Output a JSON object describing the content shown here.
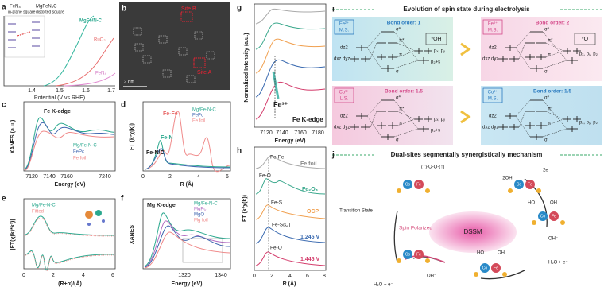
{
  "panels": {
    "a": {
      "label": "a",
      "structures": [
        "FeN₄",
        "MgFeN₄C"
      ],
      "geometries": [
        "in-plane square",
        "distorted square"
      ],
      "series": [
        "MgFe/N-C",
        "RuO₂",
        "FeN₄"
      ],
      "xticks": [
        1.4,
        1.5,
        1.6,
        1.7
      ],
      "xlabel": "Potential (V vs RHE)"
    },
    "b": {
      "label": "b",
      "sites": [
        "Site B",
        "Site A"
      ],
      "scale": "2 nm"
    },
    "c": {
      "label": "c",
      "title": "Fe K-edge",
      "ylabel": "XANES (a.u.)",
      "legend": [
        "Mg/Fe-N-C",
        "FePc",
        "Fe foil"
      ],
      "xticks": [
        7120,
        7140,
        7160,
        7240
      ],
      "xlabel": "Energy (eV)"
    },
    "d": {
      "label": "d",
      "ylabel": "FT (k³χ(k))",
      "peaks": [
        "Fe-Fe",
        "Fe-N",
        "Fe-N/C"
      ],
      "legend": [
        "Mg/Fe-N-C",
        "FePc",
        "Fe foil"
      ],
      "xticks": [
        0,
        2,
        4,
        6
      ],
      "xlabel": "R (Å)"
    },
    "e": {
      "label": "e",
      "ylabel": "|FT(χ(k)*k³)|",
      "legend": [
        "Mg/Fe-N-C",
        "Fitted"
      ],
      "xticks": [
        0,
        2,
        4,
        6
      ],
      "xlabel": "(R+α)/(Å)"
    },
    "f": {
      "label": "f",
      "title": "Mg K-edge",
      "ylabel": "XANES",
      "legend": [
        "Mg/Fe-N-C",
        "MgPc",
        "MgO",
        "Mg foil"
      ],
      "xticks": [
        1320,
        1340
      ],
      "xlabel": "Energy (eV)"
    },
    "g": {
      "label": "g",
      "ylabel": "Normalized Intensity (a.u.)",
      "annotation": "Fe³⁺",
      "title": "Fe K-edge",
      "xticks": [
        7120,
        7140,
        7160,
        7180
      ],
      "xlabel": "Energy (eV)"
    },
    "h": {
      "label": "h",
      "ylabel": "FT (k³χ(k))",
      "peaks": [
        "Fe-Fe",
        "Fe-O",
        "Fe-S",
        "Fe-S(O)",
        "Fe-O"
      ],
      "traces": [
        "Fe foil",
        "Fe₂O₃",
        "OCP",
        "1.245 V",
        "1.445 V"
      ],
      "xticks": [
        0,
        2,
        4,
        6,
        8
      ],
      "xlabel": "R (Å)"
    },
    "i": {
      "label": "i",
      "title": "Evolution of spin state during electrolysis",
      "boxes": [
        {
          "ion": "Fe²⁺",
          "state": "M.S.",
          "bond": "Bond order: 1",
          "adsorbate": "*OH"
        },
        {
          "ion": "Fe³⁺",
          "state": "M.S.",
          "bond": "Bond order: 2",
          "adsorbate": "*O"
        },
        {
          "ion": "Co³⁺",
          "state": "L.S.",
          "bond": "Bond order: 1.5"
        },
        {
          "ion": "Co³⁺",
          "state": "M.S.",
          "bond": "Bond order: 1.5"
        }
      ],
      "orbitals": {
        "dz2": "dz2",
        "dxz": "dxz dyz",
        "sigma_star": "σ*",
        "pi_star": "π*",
        "pi": "π",
        "sigma": "σ",
        "pxpy": "pₓ, pᵧ",
        "pzs": "p₂+s",
        "pxyz": "pₓ, pᵧ, p₂"
      }
    },
    "j": {
      "label": "j",
      "title": "Dual-sites segmentally synergistically mechanism",
      "center": "DSSM",
      "transition": "Transition State",
      "spin": "Spin Polarized",
      "oo": "(↑)-O-O-(↑)",
      "oh2": "2OH⁻",
      "e2": "2e⁻",
      "oh": "OH⁻",
      "water": "H₂O + e⁻",
      "ho": "HO",
      "oh_b": "OH",
      "co": "Co",
      "fe": "Fe"
    }
  }
}
